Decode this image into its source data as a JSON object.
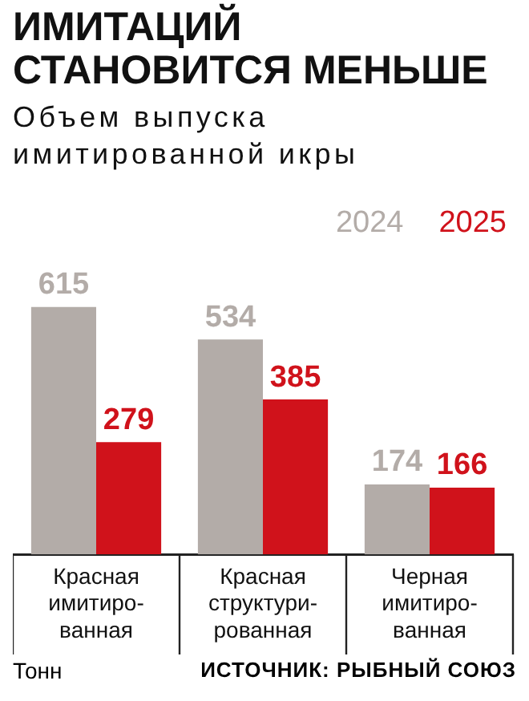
{
  "chart_data": {
    "type": "bar",
    "title": "ИМИТАЦИЙ СТАНОВИТСЯ МЕНЬШЕ",
    "subtitle": "Объем выпуска имитированной икры",
    "categories": [
      "Красная имитиро-ванная",
      "Красная структури-рованная",
      "Черная имитиро-ванная"
    ],
    "series": [
      {
        "name": "2024",
        "color": "#b3aca8",
        "values": [
          615,
          534,
          174
        ]
      },
      {
        "name": "2025",
        "color": "#d0121b",
        "values": [
          279,
          385,
          166
        ]
      }
    ],
    "data_labels": true,
    "legend": "top right",
    "grid": false,
    "annotations": [
      "Тонн",
      "ИСТОЧНИК: РЫБНЫЙ СОЮЗ"
    ]
  }
}
